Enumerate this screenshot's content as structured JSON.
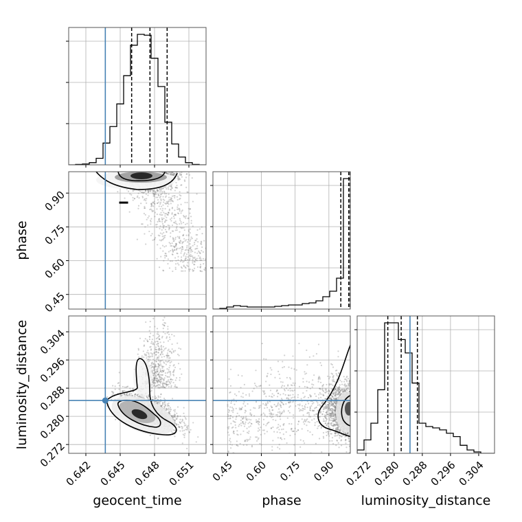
{
  "chart_data": {
    "type": "corner",
    "parameters": [
      "geocent_time",
      "phase",
      "luminosity_distance"
    ],
    "truths": {
      "geocent_time": 0.6437,
      "phase": null,
      "luminosity_distance": 0.2845
    },
    "truth_color": "#4682b4",
    "grid": true,
    "ranges": {
      "geocent_time": [
        0.6405,
        0.6525
      ],
      "phase": [
        0.385,
        0.995
      ],
      "luminosity_distance": [
        0.2695,
        0.3085
      ]
    },
    "ticks": {
      "geocent_time": [
        "0.642",
        "0.645",
        "0.648",
        "0.651"
      ],
      "phase": [
        "0.45",
        "0.60",
        "0.75",
        "0.90"
      ],
      "luminosity_distance": [
        "0.272",
        "0.280",
        "0.288",
        "0.296",
        "0.304"
      ]
    },
    "quantiles": {
      "geocent_time": [
        0.646,
        0.6476,
        0.6491
      ],
      "phase": [
        0.953,
        0.988,
        0.994
      ],
      "luminosity_distance": [
        0.2782,
        0.282,
        0.2866
      ]
    },
    "histograms": {
      "geocent_time": {
        "edges": [
          0.6405,
          0.6411,
          0.6417,
          0.6423,
          0.6429,
          0.6435,
          0.6441,
          0.6447,
          0.6453,
          0.6459,
          0.6465,
          0.6471,
          0.6477,
          0.6483,
          0.6489,
          0.6495,
          0.6501,
          0.6507,
          0.6513,
          0.6519,
          0.6525
        ],
        "counts": [
          0,
          1,
          2,
          5,
          15,
          50,
          88,
          140,
          205,
          275,
          300,
          298,
          245,
          180,
          98,
          48,
          18,
          5,
          1,
          0
        ]
      },
      "phase": {
        "edges": [
          0.385,
          0.4155,
          0.446,
          0.4765,
          0.507,
          0.5375,
          0.568,
          0.5985,
          0.629,
          0.6595,
          0.69,
          0.7205,
          0.751,
          0.7815,
          0.812,
          0.8425,
          0.873,
          0.9035,
          0.934,
          0.9645,
          0.995
        ],
        "counts": [
          0,
          1,
          3,
          5,
          4,
          3,
          3,
          3,
          3,
          4,
          5,
          6,
          6,
          8,
          9,
          12,
          18,
          26,
          45,
          190
        ]
      },
      "luminosity_distance": {
        "edges": [
          0.2695,
          0.27145,
          0.2734,
          0.27535,
          0.2773,
          0.27925,
          0.2812,
          0.28315,
          0.2851,
          0.28705,
          0.289,
          0.29095,
          0.2929,
          0.29485,
          0.2968,
          0.29875,
          0.3007,
          0.30265,
          0.3046,
          0.30655,
          0.3085
        ],
        "counts": [
          5,
          20,
          45,
          95,
          195,
          195,
          170,
          150,
          105,
          45,
          40,
          38,
          35,
          30,
          25,
          12,
          5,
          2,
          0,
          0
        ]
      }
    }
  }
}
